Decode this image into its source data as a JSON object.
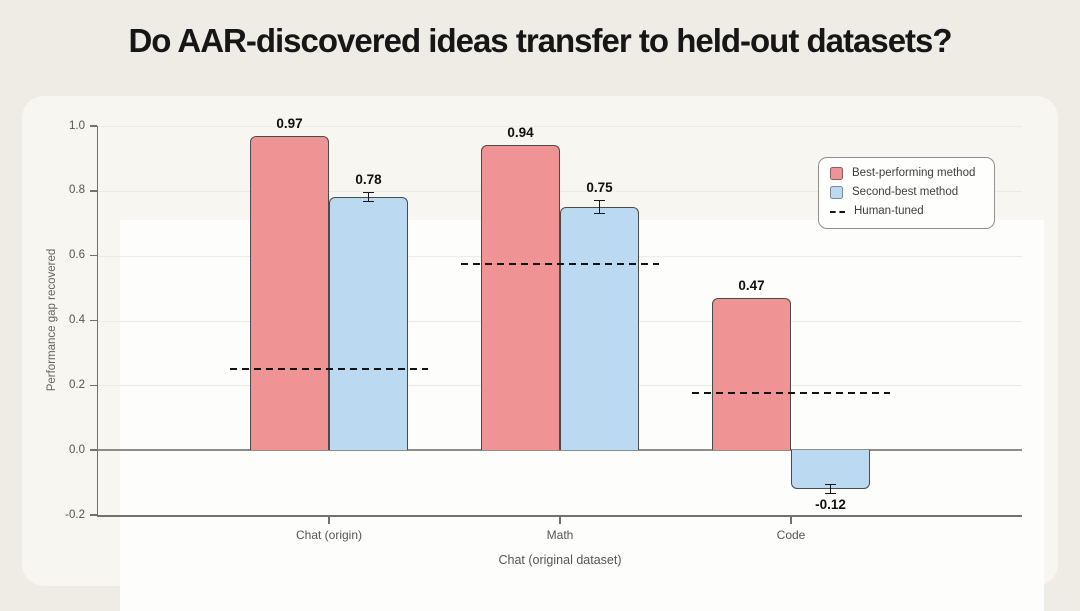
{
  "page": {
    "title": "Do AAR-discovered ideas transfer to held-out datasets?"
  },
  "chart_data": {
    "type": "bar",
    "title": "Do AAR-discovered ideas transfer to held-out datasets?",
    "categories": [
      "Chat (origin)",
      "Math",
      "Code"
    ],
    "xlabel": "Chat (original dataset)",
    "ylabel": "Performance gap recovered",
    "ylim": [
      -0.2,
      1.0
    ],
    "yticks": [
      1.0,
      0.8,
      0.6,
      0.4,
      0.2,
      0.0,
      -0.2
    ],
    "ytick_labels": [
      "1.0",
      "0.8",
      "0.6",
      "0.4",
      "0.2",
      "0.0",
      "-0.2"
    ],
    "grid": true,
    "legend_position": "upper right",
    "series": [
      {
        "name": "Best-performing method",
        "color": "#F09394",
        "values": [
          0.97,
          0.94,
          0.47
        ],
        "errors": [
          0,
          0,
          0
        ],
        "value_labels": [
          "0.97",
          "0.94",
          "0.47"
        ]
      },
      {
        "name": "Second-best method",
        "color": "#BCD9F2",
        "values": [
          0.78,
          0.75,
          -0.12
        ],
        "errors": [
          0.015,
          0.022,
          0.015
        ],
        "value_labels": [
          "0.78",
          "0.75",
          "-0.12"
        ]
      }
    ],
    "reference_lines": {
      "name": "Human-tuned",
      "style": "dashed",
      "color": "#141414",
      "values": [
        0.25,
        0.575,
        0.175
      ]
    }
  },
  "colors": {
    "page_background": "#EFECE5",
    "card_background": "#F8F6F0",
    "plot_background": "#FDFDFC",
    "bar_border": "#4B4B47",
    "gridline": "#ECEBE6",
    "zero_line": "#8C8C88",
    "axis_spine": "#70706C",
    "error_bar": "#16161E",
    "best_method": "#F09394",
    "second_best_method": "#BCD9F2",
    "human_tuned": "#141414"
  }
}
